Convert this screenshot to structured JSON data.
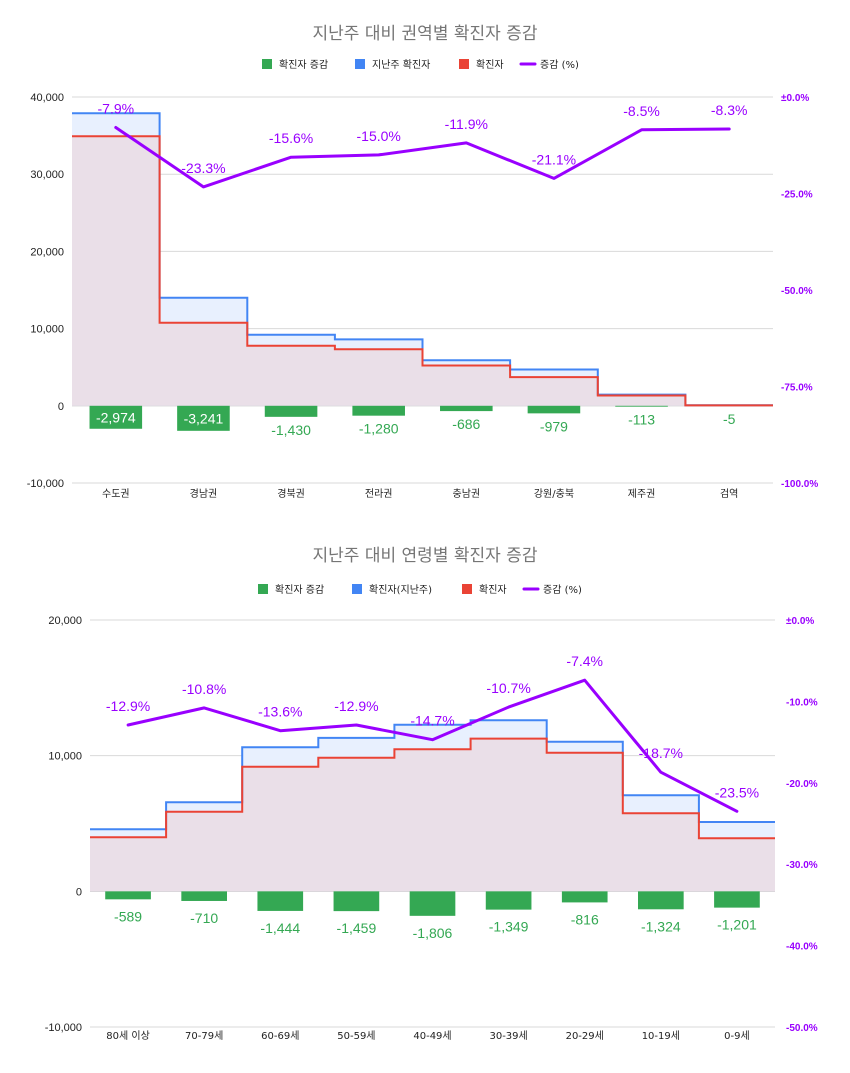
{
  "colors": {
    "increase_bar": "#34a853",
    "last_week": "#4285f4",
    "current": "#ea4335",
    "pct_line": "#9900ff",
    "last_week_fill": "#e8f0fe",
    "current_fill": "#eadfe8",
    "grid": "#d9d9d9",
    "bar_label_on_bar": "#ffffff"
  },
  "chart_data": [
    {
      "type": "combo-step-bar-line",
      "title": "지난주 대비 권역별 확진자 증감",
      "legend": [
        {
          "label": "확진자 증감",
          "kind": "bar",
          "color": "#34a853"
        },
        {
          "label": "지난주 확진자",
          "kind": "area",
          "color": "#4285f4"
        },
        {
          "label": "확진자",
          "kind": "area",
          "color": "#ea4335"
        },
        {
          "label": "증감 (%)",
          "kind": "line",
          "color": "#9900ff"
        }
      ],
      "categories": [
        "수도권",
        "경남권",
        "경북권",
        "전라권",
        "충남권",
        "강원/충북",
        "제주권",
        "검역"
      ],
      "last_week": [
        37900,
        14000,
        9200,
        8600,
        5900,
        4700,
        1450,
        60
      ],
      "current": [
        34926,
        10759,
        7770,
        7320,
        5214,
        3721,
        1337,
        55
      ],
      "increase": [
        -2974,
        -3241,
        -1430,
        -1280,
        -686,
        -979,
        -113,
        -5
      ],
      "increase_labels": [
        "-2,974",
        "-3,241",
        "-1,430",
        "-1,280",
        "-686",
        "-979",
        "-113",
        "-5"
      ],
      "highlight_bar_labels": [
        true,
        true,
        false,
        false,
        false,
        false,
        false,
        false
      ],
      "pct": [
        -7.9,
        -23.3,
        -15.6,
        -15.0,
        -11.9,
        -21.1,
        -8.5,
        -8.3
      ],
      "pct_labels": [
        "-7.9%",
        "-23.3%",
        "-15.6%",
        "-15.0%",
        "-11.9%",
        "-21.1%",
        "-8.5%",
        "-8.3%"
      ],
      "ylim": [
        -10000,
        40000
      ],
      "yticks": [
        -10000,
        0,
        10000,
        20000,
        30000,
        40000
      ],
      "ytick_labels": [
        "-10,000",
        "0",
        "10,000",
        "20,000",
        "30,000",
        "40,000"
      ],
      "y2lim": [
        -100,
        0
      ],
      "y2ticks": [
        -100,
        -75,
        -50,
        -25,
        0
      ],
      "y2tick_labels": [
        "-100.0%",
        "-75.0%",
        "-50.0%",
        "-25.0%",
        "±0.0%"
      ]
    },
    {
      "type": "combo-step-bar-line",
      "title": "지난주 대비 연령별 확진자 증감",
      "legend": [
        {
          "label": "확진자 증감",
          "kind": "bar",
          "color": "#34a853"
        },
        {
          "label": "확진자(지난주)",
          "kind": "area",
          "color": "#4285f4"
        },
        {
          "label": "확진자",
          "kind": "area",
          "color": "#ea4335"
        },
        {
          "label": "증감 (%)",
          "kind": "line",
          "color": "#9900ff"
        }
      ],
      "categories": [
        "80세 이상",
        "70-79세",
        "60-69세",
        "50-59세",
        "40-49세",
        "30-39세",
        "20-29세",
        "10-19세",
        "0-9세"
      ],
      "last_week": [
        4570,
        6570,
        10620,
        11310,
        12280,
        12610,
        11030,
        7080,
        5110
      ],
      "current": [
        3981,
        5860,
        9176,
        9851,
        10474,
        11261,
        10214,
        5756,
        3909
      ],
      "increase": [
        -589,
        -710,
        -1444,
        -1459,
        -1806,
        -1349,
        -816,
        -1324,
        -1201
      ],
      "increase_labels": [
        "-589",
        "-710",
        "-1,444",
        "-1,459",
        "-1,806",
        "-1,349",
        "-816",
        "-1,324",
        "-1,201"
      ],
      "highlight_bar_labels": [
        false,
        false,
        false,
        false,
        false,
        false,
        false,
        false,
        false
      ],
      "pct": [
        -12.9,
        -10.8,
        -13.6,
        -12.9,
        -14.7,
        -10.7,
        -7.4,
        -18.7,
        -23.5
      ],
      "pct_labels": [
        "-12.9%",
        "-10.8%",
        "-13.6%",
        "-12.9%",
        "-14.7%",
        "-10.7%",
        "-7.4%",
        "-18.7%",
        "-23.5%"
      ],
      "ylim": [
        -10000,
        20000
      ],
      "yticks": [
        -10000,
        0,
        10000,
        20000
      ],
      "ytick_labels": [
        "-10,000",
        "0",
        "10,000",
        "20,000"
      ],
      "y2lim": [
        -50,
        0
      ],
      "y2ticks": [
        -50,
        -40,
        -30,
        -20,
        -10,
        0
      ],
      "y2tick_labels": [
        "-50.0%",
        "-40.0%",
        "-30.0%",
        "-20.0%",
        "-10.0%",
        "±0.0%"
      ]
    }
  ]
}
